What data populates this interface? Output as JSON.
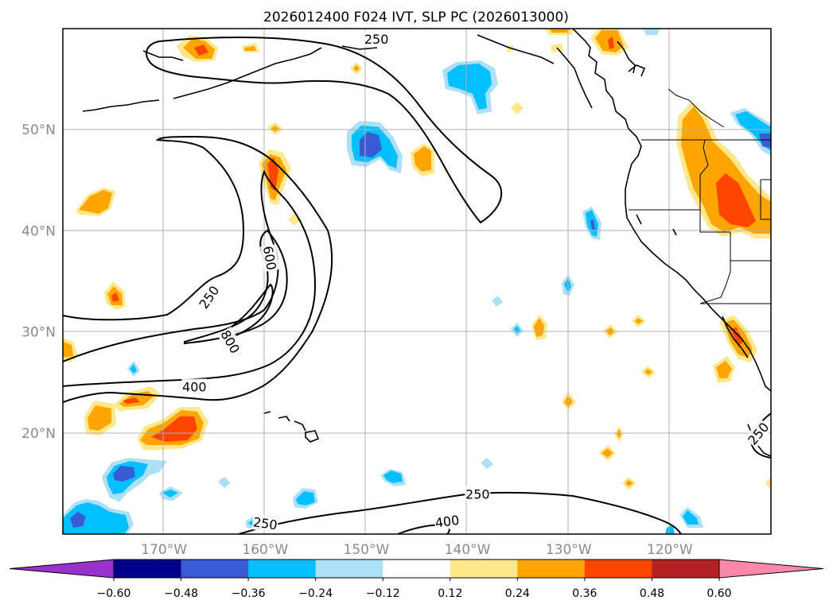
{
  "title": "2026012400 F024 IVT, SLP PC (2026013000)",
  "map": {
    "lon_range": [
      -180,
      -110
    ],
    "lat_range": [
      10,
      60
    ],
    "lon_ticks": [
      {
        "lon": -170,
        "label": "170°W"
      },
      {
        "lon": -160,
        "label": "160°W"
      },
      {
        "lon": -150,
        "label": "150°W"
      },
      {
        "lon": -140,
        "label": "140°W"
      },
      {
        "lon": -130,
        "label": "130°W"
      },
      {
        "lon": -120,
        "label": "120°W"
      }
    ],
    "lat_ticks": [
      {
        "lat": 20,
        "label": "20°N"
      },
      {
        "lat": 30,
        "label": "30°N"
      },
      {
        "lat": 40,
        "label": "40°N"
      },
      {
        "lat": 50,
        "label": "50°N"
      }
    ],
    "ivt_contour_labels": [
      {
        "text": "250",
        "lon": -165.5,
        "lat": 33.4,
        "angle": -55
      },
      {
        "text": "600",
        "lon": -159.6,
        "lat": 37.3,
        "angle": 80
      },
      {
        "text": "800",
        "lon": -163.5,
        "lat": 29.0,
        "angle": 60
      },
      {
        "text": "400",
        "lon": -167.0,
        "lat": 24.5,
        "angle": 0
      },
      {
        "text": "250",
        "lon": -149.0,
        "lat": 58.9,
        "angle": 0
      },
      {
        "text": "250",
        "lon": -139.0,
        "lat": 13.9,
        "angle": 0
      },
      {
        "text": "400",
        "lon": -142.0,
        "lat": 11.2,
        "angle": -8
      },
      {
        "text": "250",
        "lon": -160.0,
        "lat": 11.0,
        "angle": 8
      },
      {
        "text": "250",
        "lon": -111.2,
        "lat": 19.9,
        "angle": -50
      }
    ]
  },
  "colorbar": {
    "levels": [
      "-0.60",
      "-0.48",
      "-0.36",
      "-0.24",
      "-0.12",
      "0.12",
      "0.24",
      "0.36",
      "0.48",
      "0.60"
    ],
    "colors": [
      "#9932CC",
      "#00008B",
      "#3A5BD6",
      "#00BFFF",
      "#ADE0F7",
      "#FFFFFF",
      "#FFE88C",
      "#FFA500",
      "#FF4500",
      "#B22222",
      "#FF88AA"
    ]
  }
}
